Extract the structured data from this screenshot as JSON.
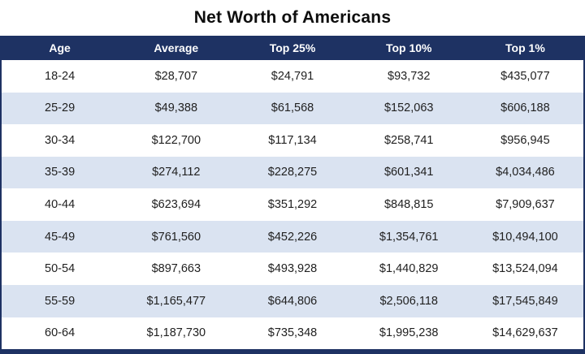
{
  "title": "Net Worth of Americans",
  "colors": {
    "navy": "#1e3263",
    "light_row_blue": "#dae3f1",
    "header_text": "#ffffff",
    "body_text": "#212121"
  },
  "chart_data": {
    "type": "table",
    "title": "Net Worth of Americans",
    "columns": [
      "Age",
      "Average",
      "Top 25%",
      "Top 10%",
      "Top 1%"
    ],
    "rows": [
      [
        "18-24",
        "$28,707",
        "$24,791",
        "$93,732",
        "$435,077"
      ],
      [
        "25-29",
        "$49,388",
        "$61,568",
        "$152,063",
        "$606,188"
      ],
      [
        "30-34",
        "$122,700",
        "$117,134",
        "$258,741",
        "$956,945"
      ],
      [
        "35-39",
        "$274,112",
        "$228,275",
        "$601,341",
        "$4,034,486"
      ],
      [
        "40-44",
        "$623,694",
        "$351,292",
        "$848,815",
        "$7,909,637"
      ],
      [
        "45-49",
        "$761,560",
        "$452,226",
        "$1,354,761",
        "$10,494,100"
      ],
      [
        "50-54",
        "$897,663",
        "$493,928",
        "$1,440,829",
        "$13,524,094"
      ],
      [
        "55-59",
        "$1,165,477",
        "$644,806",
        "$2,506,118",
        "$17,545,849"
      ],
      [
        "60-64",
        "$1,187,730",
        "$735,348",
        "$1,995,238",
        "$14,629,637"
      ]
    ],
    "layout": {
      "striped_rows": "even rows light blue",
      "header_background": "navy",
      "column_alignment": "center"
    }
  }
}
